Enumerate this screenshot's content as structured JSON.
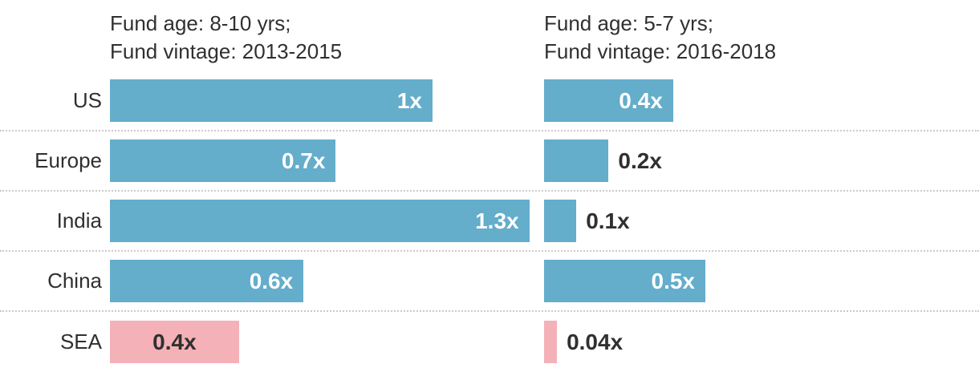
{
  "chart_data": {
    "type": "bar",
    "orientation": "horizontal",
    "unit_suffix": "x",
    "categories": [
      "US",
      "Europe",
      "India",
      "China",
      "SEA"
    ],
    "column_headers": [
      {
        "line1": "Fund age: 8-10 yrs;",
        "line2": "Fund vintage: 2013-2015"
      },
      {
        "line1": "Fund age: 5-7 yrs;",
        "line2": "Fund vintage: 2016-2018"
      }
    ],
    "series": [
      {
        "name": "Fund age: 8-10 yrs; Fund vintage: 2013-2015",
        "bars": [
          {
            "category": "US",
            "value": 1,
            "label": "1x",
            "label_placement": "inside"
          },
          {
            "category": "Europe",
            "value": 0.7,
            "label": "0.7x",
            "label_placement": "inside"
          },
          {
            "category": "India",
            "value": 1.3,
            "label": "1.3x",
            "label_placement": "inside"
          },
          {
            "category": "China",
            "value": 0.6,
            "label": "0.6x",
            "label_placement": "inside"
          },
          {
            "category": "SEA",
            "value": 0.4,
            "label": "0.4x",
            "label_placement": "center"
          }
        ]
      },
      {
        "name": "Fund age: 5-7 yrs; Fund vintage: 2016-2018",
        "bars": [
          {
            "category": "US",
            "value": 0.4,
            "label": "0.4x",
            "label_placement": "inside"
          },
          {
            "category": "Europe",
            "value": 0.2,
            "label": "0.2x",
            "label_placement": "outside"
          },
          {
            "category": "India",
            "value": 0.1,
            "label": "0.1x",
            "label_placement": "outside"
          },
          {
            "category": "China",
            "value": 0.5,
            "label": "0.5x",
            "label_placement": "inside"
          },
          {
            "category": "SEA",
            "value": 0.04,
            "label": "0.04x",
            "label_placement": "outside"
          }
        ]
      }
    ],
    "highlight_categories": [
      "SEA"
    ],
    "colors": {
      "bar_default": "#64ADCB",
      "bar_highlight": "#F4B1B7",
      "text_dark": "#303030",
      "text_light": "#FFFFFF",
      "separator": "#CBCBCB"
    },
    "xlim": [
      0,
      1.35
    ],
    "grid": "dotted horizontal separators between rows",
    "legend_position": "column headers above each bar column"
  }
}
